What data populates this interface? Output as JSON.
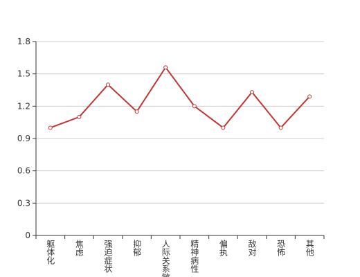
{
  "chart_data": {
    "type": "line",
    "categories": [
      "躯体化",
      "焦虑",
      "强迫症状",
      "抑郁",
      "人际关系敏感",
      "精神病性",
      "偏执",
      "敌对",
      "恐怖",
      "其他"
    ],
    "values": [
      1.0,
      1.1,
      1.4,
      1.15,
      1.56,
      1.2,
      1.0,
      1.33,
      1.0,
      1.29
    ],
    "color": "#c23531",
    "ylim": [
      0,
      1.8
    ],
    "yticks": [
      0,
      0.3,
      0.6,
      0.9,
      1.2,
      1.5,
      1.8
    ],
    "grid": true
  }
}
